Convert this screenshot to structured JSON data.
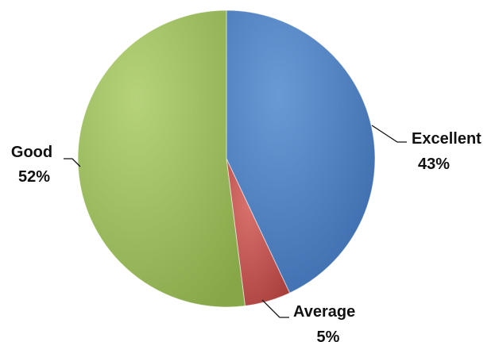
{
  "chart_data": {
    "type": "pie",
    "title": "",
    "slices": [
      {
        "name": "Excellent",
        "value": 43,
        "label_pct": "43%",
        "color": "#4a7ebf"
      },
      {
        "name": "Average",
        "value": 5,
        "label_pct": "5%",
        "color": "#c0504d"
      },
      {
        "name": "Good",
        "value": 52,
        "label_pct": "52%",
        "color": "#9bbb59"
      }
    ],
    "start": "12 o'clock",
    "direction": "clockwise",
    "legend": "none",
    "data_labels": "outside, category name and percentage, with leader lines"
  }
}
